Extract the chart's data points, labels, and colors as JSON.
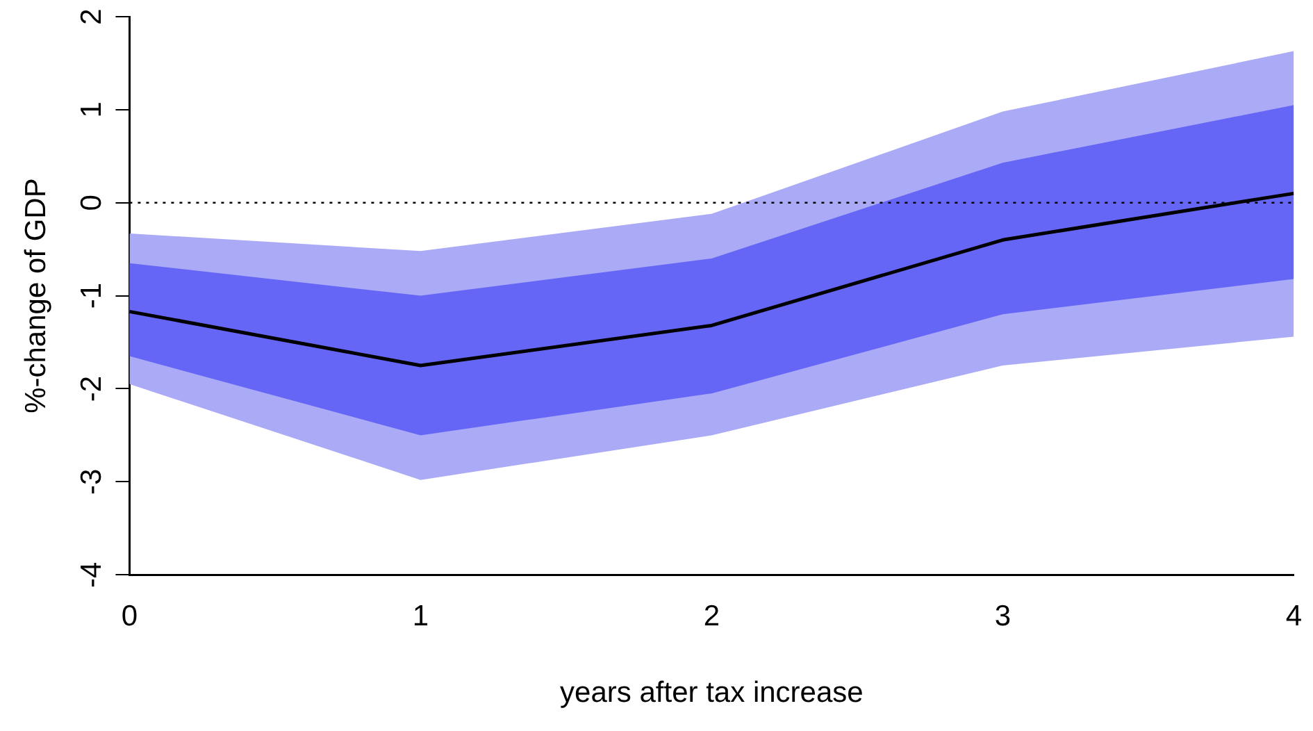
{
  "chart_data": {
    "type": "line",
    "xlabel": "years after tax increase",
    "ylabel": "%-change of GDP",
    "x": [
      0,
      1,
      2,
      3,
      4
    ],
    "xlim": [
      0,
      4
    ],
    "xticks": [
      0,
      1,
      2,
      3,
      4
    ],
    "ylim": [
      -4,
      2
    ],
    "yticks": [
      -4,
      -3,
      -2,
      -1,
      0,
      1,
      2
    ],
    "series": [
      {
        "color": "#aaaaf6",
        "values": [
          null,
          null,
          null,
          null,
          null
        ],
        "lower": [
          -1.95,
          -2.98,
          -2.5,
          -1.75,
          -1.44
        ],
        "upper": [
          -0.33,
          -0.52,
          -0.12,
          0.98,
          1.63
        ]
      },
      {
        "color": "#6666f6",
        "values": [
          null,
          null,
          null,
          null,
          null
        ],
        "lower": [
          -1.65,
          -2.5,
          -2.05,
          -1.2,
          -0.82
        ],
        "upper": [
          -0.65,
          -1.0,
          -0.6,
          0.43,
          1.05
        ]
      },
      {
        "color": "#000000",
        "values": [
          -1.17,
          -1.75,
          -1.32,
          -0.4,
          0.1
        ]
      }
    ],
    "ref_lines": [
      {
        "axis": "y",
        "value": 0,
        "line_style": "dotted",
        "color": "#000000"
      }
    ],
    "grid": false,
    "legend": false,
    "marker": "none"
  }
}
